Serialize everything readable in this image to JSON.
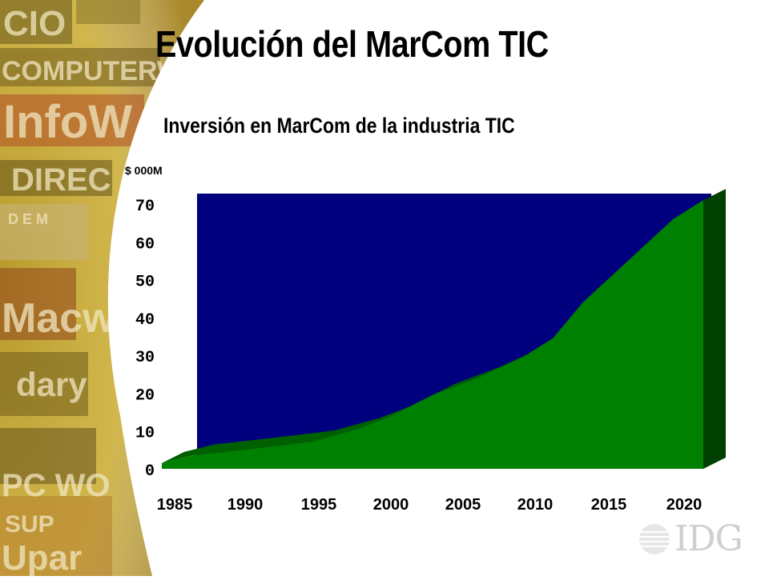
{
  "slide": {
    "title": "Evolución del MarCom TIC",
    "subtitle": "Inversión en MarCom de la industria TIC",
    "unit_label": "$ 000M",
    "logo_text": "IDG",
    "background_collage_text": [
      "CIO",
      "COMPUTERWORLD",
      "InfoW",
      "DIREC",
      "D E M",
      "Macw",
      "dary",
      "PC WO",
      "SUP",
      "Upar"
    ]
  },
  "chart_data": {
    "type": "area",
    "title": "Inversión en MarCom de la industria TIC",
    "ylabel": "$ 000M",
    "ylim": [
      0,
      70
    ],
    "yticks": [
      "0",
      "10",
      "20",
      "30",
      "40",
      "50",
      "60",
      "70"
    ],
    "xlim": [
      1985,
      2021
    ],
    "xticks": [
      "1985",
      "1990",
      "1995",
      "2000",
      "2005",
      "2010",
      "2015",
      "2020"
    ],
    "series": [
      {
        "x": [
          1985,
          1987,
          1990,
          1993,
          1995,
          1998,
          2000,
          2003,
          2006,
          2009,
          2011,
          2013,
          2016,
          2019,
          2021
        ],
        "y": [
          1.5,
          3.5,
          4.8,
          6.2,
          7.2,
          10.5,
          13.5,
          19.5,
          24,
          29.5,
          34.5,
          44,
          55,
          66,
          71
        ]
      }
    ],
    "colors": {
      "plot_background": "#00007f",
      "area_fill": "#008000",
      "area_side": "#004000",
      "area_top": "#006000"
    },
    "grid": false,
    "style": "3d"
  }
}
